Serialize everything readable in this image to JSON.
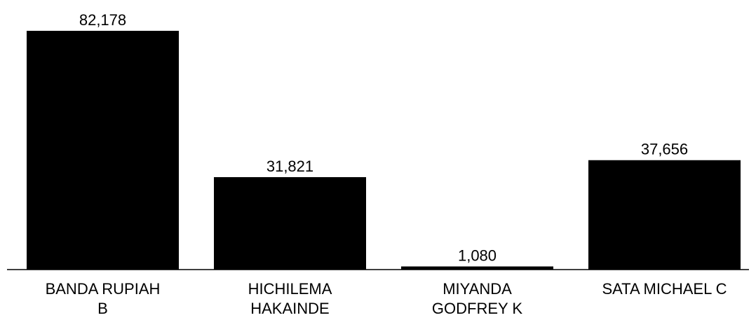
{
  "chart_data": {
    "type": "bar",
    "categories": [
      [
        "BANDA RUPIAH",
        "B"
      ],
      [
        "HICHILEMA",
        "HAKAINDE"
      ],
      [
        "MIYANDA",
        "GODFREY K"
      ],
      [
        "SATA MICHAEL C"
      ]
    ],
    "values": [
      82178,
      31821,
      1080,
      37656
    ],
    "value_labels": [
      "82,178",
      "31,821",
      "1,080",
      "37,656"
    ],
    "title": "",
    "xlabel": "",
    "ylabel": "",
    "ylim": [
      0,
      82178
    ],
    "grid": false,
    "legend": "none",
    "bar_color": "#000000"
  }
}
